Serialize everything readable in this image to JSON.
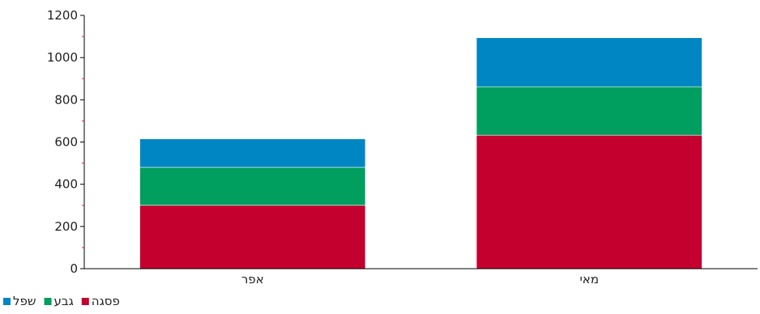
{
  "chart_data": {
    "type": "bar",
    "stacked": true,
    "categories": [
      "אפר",
      "מאי"
    ],
    "series": [
      {
        "name": "פסגה",
        "values": [
          300,
          632
        ],
        "color": "#c4002f"
      },
      {
        "name": "גבע",
        "values": [
          180,
          230
        ],
        "color": "#009e5f"
      },
      {
        "name": "שפל",
        "values": [
          135,
          232
        ],
        "color": "#0086c3"
      }
    ],
    "yticks": [
      "0",
      "200",
      "400",
      "600",
      "800",
      "1000",
      "1200"
    ],
    "ylim": [
      0,
      1200
    ],
    "legend_position": "bottom-left",
    "grid": false
  }
}
